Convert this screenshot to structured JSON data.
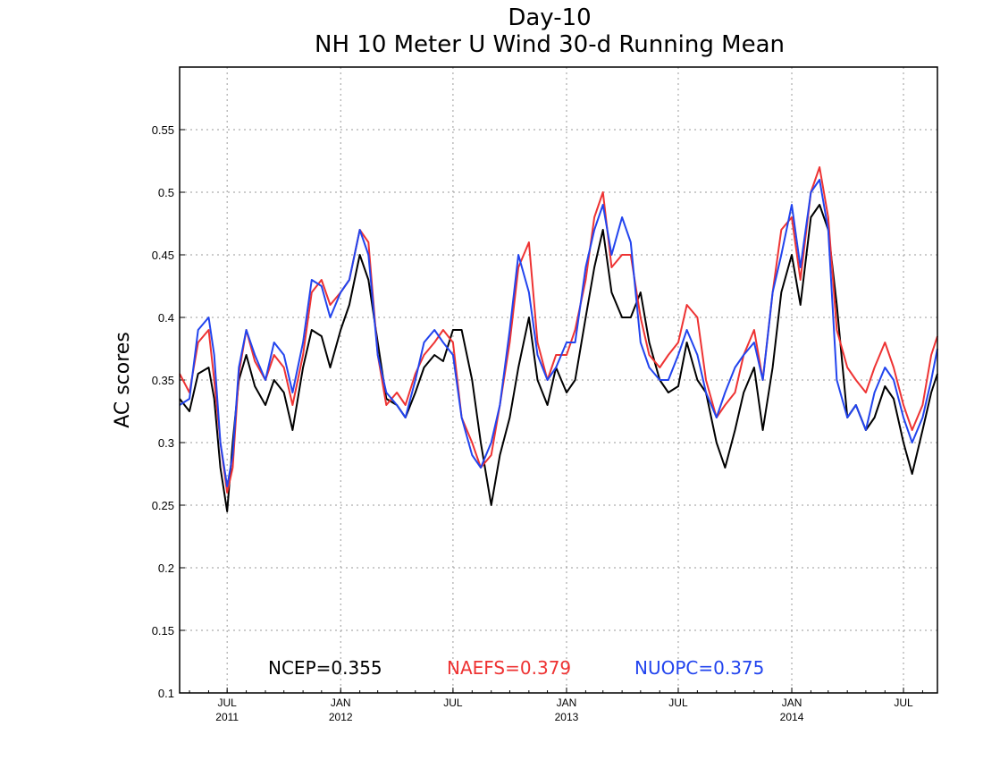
{
  "chart_data": {
    "type": "line",
    "title": "Day-10",
    "subtitle": "NH 10 Meter U Wind 30-d Running Mean",
    "ylabel": "AC scores",
    "ylim": [
      0.1,
      0.6
    ],
    "yticks": [
      0.1,
      0.15,
      0.2,
      0.25,
      0.3,
      0.35,
      0.4,
      0.45,
      0.5,
      0.55
    ],
    "ytick_labels": [
      "0.1",
      "0.15",
      "0.2",
      "0.25",
      "0.3",
      "0.35",
      "0.4",
      "0.45",
      "0.5",
      "0.55"
    ],
    "xlim": [
      "2011-04-15",
      "2014-08-25"
    ],
    "xticks": [
      {
        "date": "2011-07-01",
        "month": "JUL",
        "year": "2011"
      },
      {
        "date": "2012-01-01",
        "month": "JAN",
        "year": "2012"
      },
      {
        "date": "2012-07-01",
        "month": "JUL",
        "year": ""
      },
      {
        "date": "2013-01-01",
        "month": "JAN",
        "year": "2013"
      },
      {
        "date": "2013-07-01",
        "month": "JUL",
        "year": ""
      },
      {
        "date": "2014-01-01",
        "month": "JAN",
        "year": "2014"
      },
      {
        "date": "2014-07-01",
        "month": "JUL",
        "year": ""
      }
    ],
    "grid": true,
    "x": [
      "2011-04-15",
      "2011-05-01",
      "2011-05-15",
      "2011-06-01",
      "2011-06-10",
      "2011-06-20",
      "2011-07-01",
      "2011-07-10",
      "2011-07-20",
      "2011-08-01",
      "2011-08-15",
      "2011-09-01",
      "2011-09-15",
      "2011-10-01",
      "2011-10-15",
      "2011-11-01",
      "2011-11-15",
      "2011-12-01",
      "2011-12-15",
      "2012-01-01",
      "2012-01-15",
      "2012-02-01",
      "2012-02-15",
      "2012-03-01",
      "2012-03-15",
      "2012-04-01",
      "2012-04-15",
      "2012-05-01",
      "2012-05-15",
      "2012-06-01",
      "2012-06-15",
      "2012-07-01",
      "2012-07-15",
      "2012-08-01",
      "2012-08-15",
      "2012-09-01",
      "2012-09-15",
      "2012-10-01",
      "2012-10-15",
      "2012-11-01",
      "2012-11-15",
      "2012-12-01",
      "2012-12-15",
      "2013-01-01",
      "2013-01-15",
      "2013-02-01",
      "2013-02-15",
      "2013-03-01",
      "2013-03-15",
      "2013-04-01",
      "2013-04-15",
      "2013-05-01",
      "2013-05-15",
      "2013-06-01",
      "2013-06-15",
      "2013-07-01",
      "2013-07-15",
      "2013-08-01",
      "2013-08-15",
      "2013-09-01",
      "2013-09-15",
      "2013-10-01",
      "2013-10-15",
      "2013-11-01",
      "2013-11-15",
      "2013-12-01",
      "2013-12-15",
      "2014-01-01",
      "2014-01-15",
      "2014-02-01",
      "2014-02-15",
      "2014-03-01",
      "2014-03-15",
      "2014-04-01",
      "2014-04-15",
      "2014-05-01",
      "2014-05-15",
      "2014-06-01",
      "2014-06-15",
      "2014-07-01",
      "2014-07-15",
      "2014-08-01",
      "2014-08-15",
      "2014-08-25"
    ],
    "series": [
      {
        "name": "NCEP",
        "color": "#000000",
        "values": [
          0.335,
          0.325,
          0.355,
          0.36,
          0.335,
          0.28,
          0.245,
          0.3,
          0.35,
          0.37,
          0.345,
          0.33,
          0.35,
          0.34,
          0.31,
          0.36,
          0.39,
          0.385,
          0.36,
          0.39,
          0.41,
          0.45,
          0.43,
          0.38,
          0.335,
          0.33,
          0.32,
          0.34,
          0.36,
          0.37,
          0.365,
          0.39,
          0.39,
          0.35,
          0.3,
          0.25,
          0.29,
          0.32,
          0.36,
          0.4,
          0.35,
          0.33,
          0.36,
          0.34,
          0.35,
          0.4,
          0.44,
          0.47,
          0.42,
          0.4,
          0.4,
          0.42,
          0.38,
          0.35,
          0.34,
          0.345,
          0.38,
          0.35,
          0.34,
          0.3,
          0.28,
          0.31,
          0.34,
          0.36,
          0.31,
          0.36,
          0.42,
          0.45,
          0.41,
          0.48,
          0.49,
          0.47,
          0.41,
          0.32,
          0.33,
          0.31,
          0.32,
          0.345,
          0.335,
          0.3,
          0.275,
          0.31,
          0.34,
          0.355
        ]
      },
      {
        "name": "NAEFS",
        "color": "#ee3333",
        "values": [
          0.355,
          0.34,
          0.38,
          0.39,
          0.35,
          0.3,
          0.26,
          0.28,
          0.355,
          0.39,
          0.365,
          0.35,
          0.37,
          0.36,
          0.33,
          0.37,
          0.42,
          0.43,
          0.41,
          0.42,
          0.43,
          0.47,
          0.46,
          0.37,
          0.33,
          0.34,
          0.33,
          0.355,
          0.37,
          0.38,
          0.39,
          0.38,
          0.32,
          0.3,
          0.28,
          0.29,
          0.33,
          0.38,
          0.44,
          0.46,
          0.38,
          0.35,
          0.37,
          0.37,
          0.39,
          0.43,
          0.48,
          0.5,
          0.44,
          0.45,
          0.45,
          0.4,
          0.37,
          0.36,
          0.37,
          0.38,
          0.41,
          0.4,
          0.35,
          0.32,
          0.33,
          0.34,
          0.37,
          0.39,
          0.35,
          0.42,
          0.47,
          0.48,
          0.43,
          0.5,
          0.52,
          0.48,
          0.39,
          0.36,
          0.35,
          0.34,
          0.36,
          0.38,
          0.36,
          0.33,
          0.31,
          0.33,
          0.37,
          0.385
        ]
      },
      {
        "name": "NUOPC",
        "color": "#2244ee",
        "values": [
          0.33,
          0.335,
          0.39,
          0.4,
          0.37,
          0.3,
          0.265,
          0.29,
          0.36,
          0.39,
          0.37,
          0.35,
          0.38,
          0.37,
          0.34,
          0.38,
          0.43,
          0.425,
          0.4,
          0.42,
          0.43,
          0.47,
          0.45,
          0.37,
          0.34,
          0.33,
          0.32,
          0.35,
          0.38,
          0.39,
          0.38,
          0.37,
          0.32,
          0.29,
          0.28,
          0.3,
          0.33,
          0.39,
          0.45,
          0.42,
          0.37,
          0.35,
          0.36,
          0.38,
          0.38,
          0.44,
          0.47,
          0.49,
          0.45,
          0.48,
          0.46,
          0.38,
          0.36,
          0.35,
          0.35,
          0.37,
          0.39,
          0.37,
          0.34,
          0.32,
          0.34,
          0.36,
          0.37,
          0.38,
          0.35,
          0.42,
          0.45,
          0.49,
          0.44,
          0.5,
          0.51,
          0.47,
          0.35,
          0.32,
          0.33,
          0.31,
          0.34,
          0.36,
          0.35,
          0.32,
          0.3,
          0.32,
          0.35,
          0.375
        ]
      }
    ],
    "stats": [
      {
        "label": "NCEP=0.355",
        "color": "#000000"
      },
      {
        "label": "NAEFS=0.379",
        "color": "#ee3333"
      },
      {
        "label": "NUOPC=0.375",
        "color": "#2244ee"
      }
    ]
  }
}
